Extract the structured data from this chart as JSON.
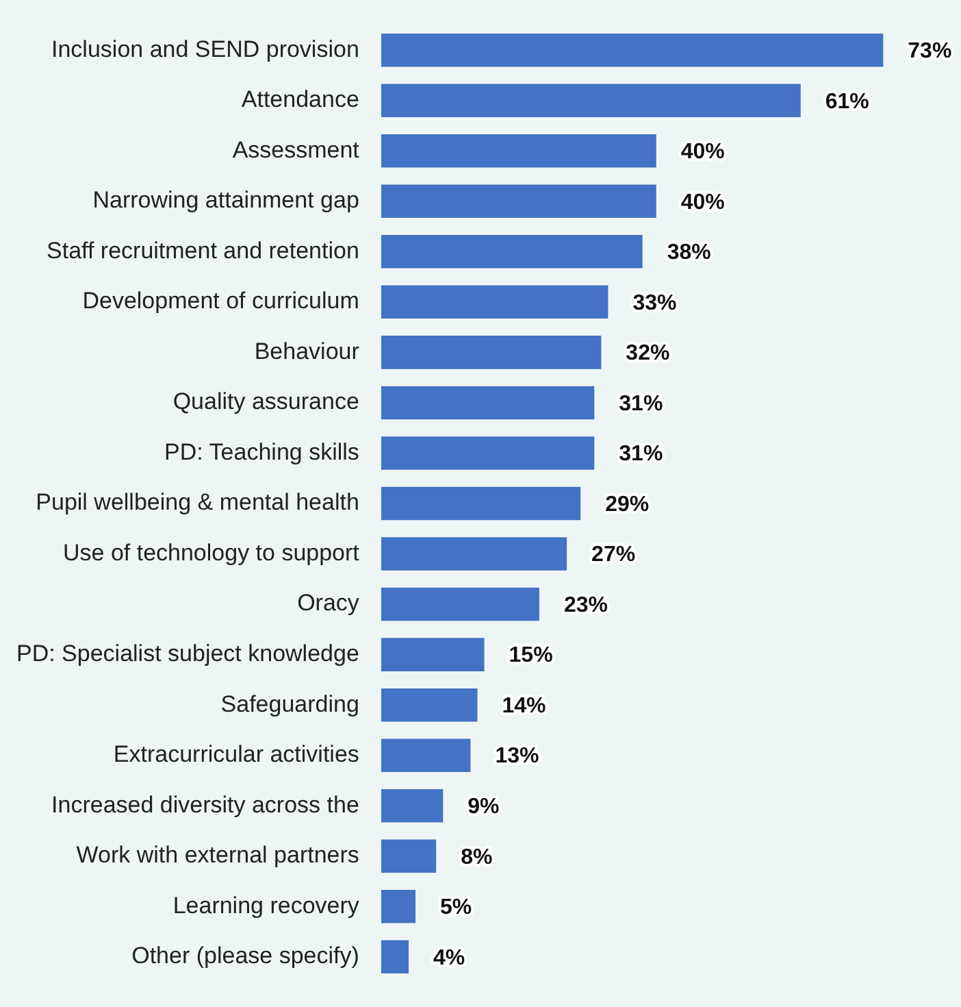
{
  "chart_data": {
    "type": "bar",
    "orientation": "horizontal",
    "color": "#4472c4",
    "categories": [
      "Inclusion and SEND provision",
      "Attendance",
      "Assessment",
      "Narrowing attainment gap",
      "Staff recruitment and retention",
      "Development of curriculum",
      "Behaviour",
      "Quality assurance",
      "PD: Teaching skills",
      "Pupil wellbeing & mental health",
      "Use of technology to support",
      "Oracy",
      "PD: Specialist subject knowledge",
      "Safeguarding",
      "Extracurricular activities",
      "Increased diversity across the",
      "Work with external partners",
      "Learning recovery",
      "Other (please specify)"
    ],
    "values": [
      73,
      61,
      40,
      40,
      38,
      33,
      32,
      31,
      31,
      29,
      27,
      23,
      15,
      14,
      13,
      9,
      8,
      5,
      4
    ],
    "value_labels": [
      "73%",
      "61%",
      "40%",
      "40%",
      "38%",
      "33%",
      "32%",
      "31%",
      "31%",
      "29%",
      "27%",
      "23%",
      "15%",
      "14%",
      "13%",
      "9%",
      "8%",
      "5%",
      "4%"
    ]
  }
}
